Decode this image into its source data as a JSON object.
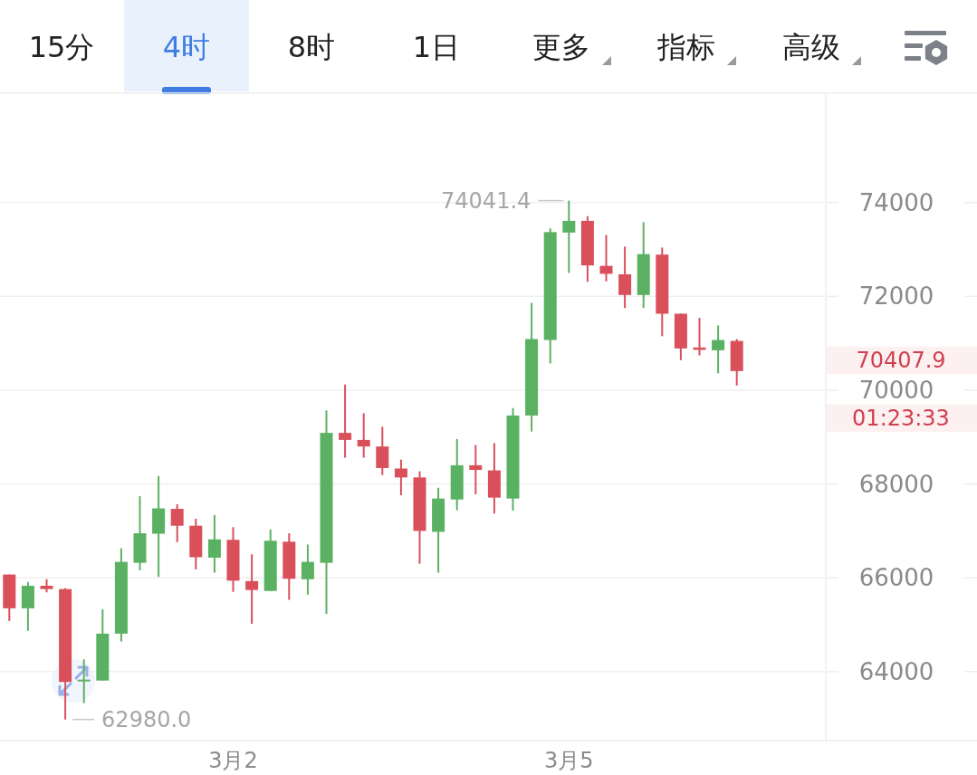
{
  "chart_data": {
    "type": "candlestick",
    "categories": [
      null,
      null,
      null,
      null,
      null,
      null,
      null,
      null,
      null,
      null,
      null,
      null,
      "3月2",
      null,
      null,
      null,
      null,
      null,
      null,
      null,
      null,
      null,
      null,
      null,
      null,
      null,
      null,
      null,
      null,
      null,
      "3月5",
      null,
      null,
      null,
      null,
      null,
      null,
      null,
      null,
      null
    ],
    "ohlc": [
      [
        66070,
        66070,
        65080,
        65350
      ],
      [
        65350,
        65910,
        64870,
        65830
      ],
      [
        65830,
        65970,
        65690,
        65760
      ],
      [
        65760,
        65780,
        62980,
        63780
      ],
      [
        63800,
        64260,
        63330,
        63830
      ],
      [
        63810,
        65330,
        63810,
        64810
      ],
      [
        64810,
        66630,
        64640,
        66340
      ],
      [
        66320,
        67740,
        66160,
        66950
      ],
      [
        66940,
        68170,
        66020,
        67480
      ],
      [
        67470,
        67570,
        66760,
        67110
      ],
      [
        67110,
        67260,
        66180,
        66440
      ],
      [
        66430,
        67340,
        66110,
        66820
      ],
      [
        66810,
        67080,
        65700,
        65940
      ],
      [
        65930,
        66500,
        65020,
        65740
      ],
      [
        65720,
        67030,
        65720,
        66790
      ],
      [
        66770,
        66950,
        65530,
        65980
      ],
      [
        65970,
        66710,
        65640,
        66340
      ],
      [
        66320,
        69570,
        65230,
        69090
      ],
      [
        69090,
        70120,
        68560,
        68940
      ],
      [
        68940,
        69510,
        68560,
        68800
      ],
      [
        68800,
        69220,
        68190,
        68340
      ],
      [
        68330,
        68520,
        67760,
        68140
      ],
      [
        68140,
        68270,
        66300,
        67000
      ],
      [
        66980,
        67920,
        66110,
        67690
      ],
      [
        67670,
        68960,
        67440,
        68400
      ],
      [
        68400,
        68830,
        67780,
        68300
      ],
      [
        68290,
        68870,
        67370,
        67710
      ],
      [
        67690,
        69620,
        67430,
        69460
      ],
      [
        69460,
        71860,
        69120,
        71090
      ],
      [
        71070,
        73450,
        70570,
        73370
      ],
      [
        73360,
        74041.4,
        72500,
        73610
      ],
      [
        73610,
        73710,
        72310,
        72660
      ],
      [
        72650,
        73310,
        72320,
        72480
      ],
      [
        72470,
        73060,
        71750,
        72030
      ],
      [
        72030,
        73580,
        71750,
        72900
      ],
      [
        72890,
        73040,
        71150,
        71630
      ],
      [
        71630,
        71630,
        70640,
        70890
      ],
      [
        70910,
        71540,
        70740,
        70860
      ],
      [
        70850,
        71380,
        70360,
        71070
      ],
      [
        71050,
        71090,
        70100,
        70407.9
      ]
    ],
    "colors": [
      "#d9505a",
      "#5bb162",
      "#d9505a",
      "#d9505a",
      "#5bb162",
      "#5bb162",
      "#5bb162",
      "#5bb162",
      "#5bb162",
      "#d9505a",
      "#d9505a",
      "#5bb162",
      "#d9505a",
      "#d9505a",
      "#5bb162",
      "#d9505a",
      "#5bb162",
      "#5bb162",
      "#d9505a",
      "#d9505a",
      "#d9505a",
      "#d9505a",
      "#d9505a",
      "#5bb162",
      "#5bb162",
      "#d9505a",
      "#d9505a",
      "#5bb162",
      "#5bb162",
      "#5bb162",
      "#5bb162",
      "#d9505a",
      "#d9505a",
      "#d9505a",
      "#5bb162",
      "#d9505a",
      "#d9505a",
      "#d9505a",
      "#5bb162",
      "#d9505a"
    ],
    "ylim": [
      62530,
      76330
    ],
    "yticks": [
      64000,
      66000,
      68000,
      70000,
      72000,
      74000
    ],
    "grid": "y",
    "annotations": [
      "74041.4",
      "62980.0",
      "70407.9",
      "01:23:33",
      "15分",
      "4时",
      "8时",
      "1日",
      "更多",
      "指标",
      "高级"
    ]
  }
}
